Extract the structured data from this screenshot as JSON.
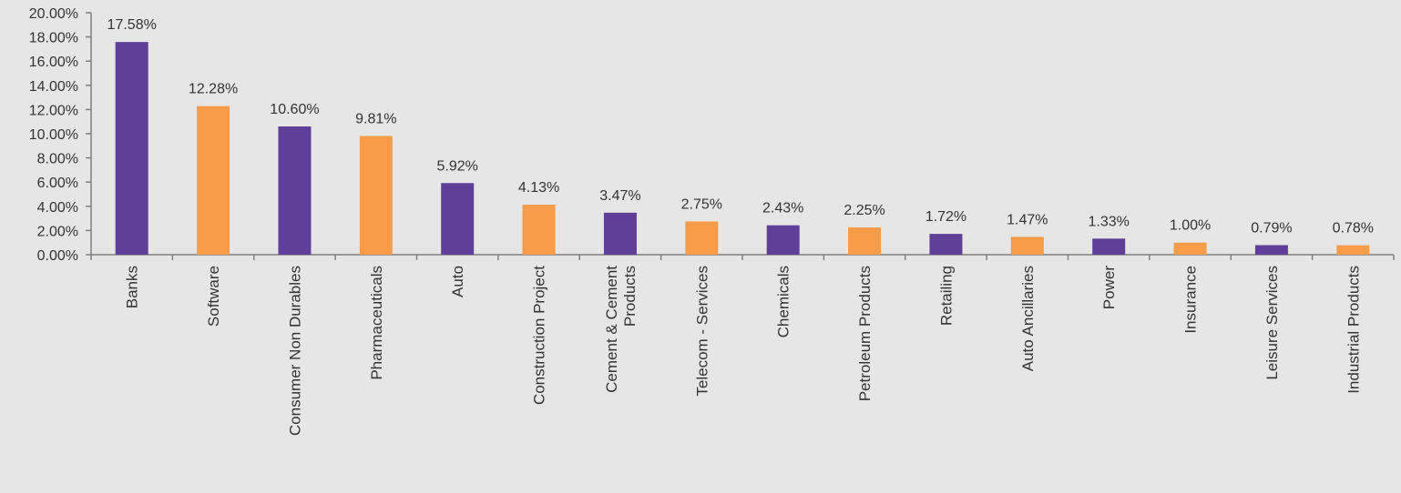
{
  "chart_data": {
    "type": "bar",
    "title": "",
    "xlabel": "",
    "ylabel": "",
    "ylim": [
      0,
      20
    ],
    "yticks": [
      "0.00%",
      "2.00%",
      "4.00%",
      "6.00%",
      "8.00%",
      "10.00%",
      "12.00%",
      "14.00%",
      "16.00%",
      "18.00%",
      "20.00%"
    ],
    "grid": false,
    "legend": "none",
    "colors": {
      "odd": "#5f3f97",
      "even": "#f89c4a"
    },
    "categories": [
      "Banks",
      "Software",
      "Consumer Non Durables",
      "Pharmaceuticals",
      "Auto",
      "Construction Project",
      "Cement & Cement Products",
      "Telecom - Services",
      "Chemicals",
      "Petroleum Products",
      "Retailing",
      "Auto Ancillaries",
      "Power",
      "Insurance",
      "Leisure Services",
      "Industrial Products"
    ],
    "values": [
      17.58,
      12.28,
      10.6,
      9.81,
      5.92,
      4.13,
      3.47,
      2.75,
      2.43,
      2.25,
      1.72,
      1.47,
      1.33,
      1.0,
      0.79,
      0.78
    ],
    "value_labels": [
      "17.58%",
      "12.28%",
      "10.60%",
      "9.81%",
      "5.92%",
      "4.13%",
      "3.47%",
      "2.75%",
      "2.43%",
      "2.25%",
      "1.72%",
      "1.47%",
      "1.33%",
      "1.00%",
      "0.79%",
      "0.78%"
    ]
  }
}
